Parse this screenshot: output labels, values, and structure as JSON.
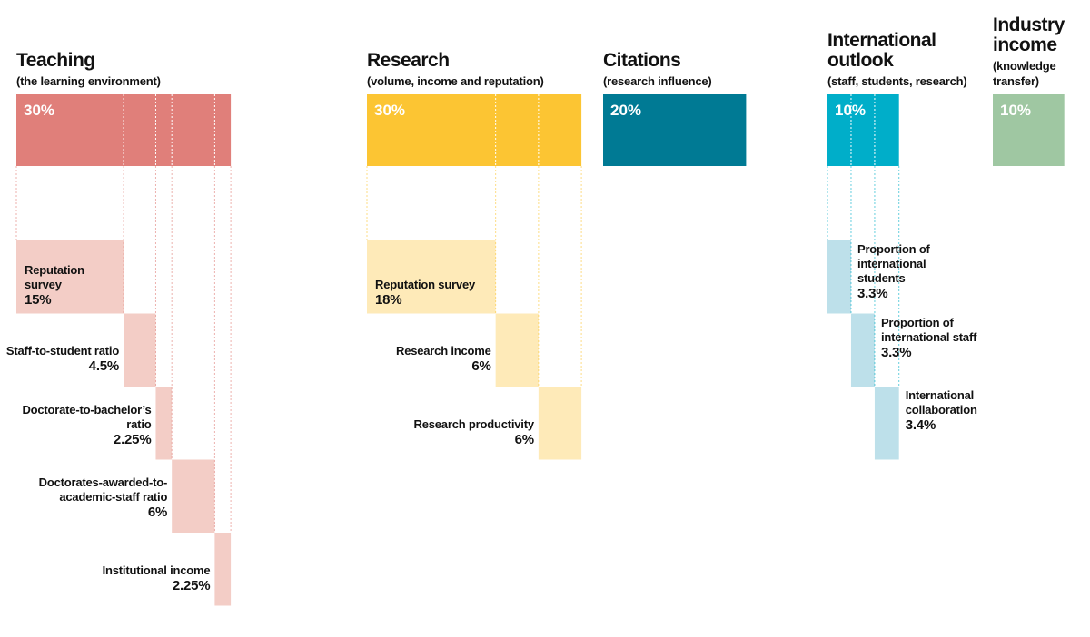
{
  "pillars": [
    {
      "title": "Teaching",
      "subtitle": "(the learning environment)",
      "weight": {
        "value": 30,
        "label": "30%"
      },
      "color": "#e07f7a",
      "light_color": "#f3cdc6",
      "label_side": "left",
      "subs": [
        {
          "name": "Reputation survey",
          "weight": {
            "value": 15,
            "label": "15%"
          }
        },
        {
          "name": "Staff-to-student ratio",
          "weight": {
            "value": 4.5,
            "label": "4.5%"
          }
        },
        {
          "name": "Doctorate-to-bachelor’s ratio",
          "weight": {
            "value": 2.25,
            "label": "2.25%"
          }
        },
        {
          "name": "Doctorates-awarded-to-academic-staff ratio",
          "weight": {
            "value": 6,
            "label": "6%"
          }
        },
        {
          "name": "Institutional income",
          "weight": {
            "value": 2.25,
            "label": "2.25%"
          }
        }
      ]
    },
    {
      "title": "Research",
      "subtitle": "(volume, income and reputation)",
      "weight": {
        "value": 30,
        "label": "30%"
      },
      "color": "#fcc533",
      "light_color": "#feeab8",
      "label_side": "left",
      "subs": [
        {
          "name": "Reputation survey",
          "weight": {
            "value": 18,
            "label": "18%"
          }
        },
        {
          "name": "Research income",
          "weight": {
            "value": 6,
            "label": "6%"
          }
        },
        {
          "name": "Research productivity",
          "weight": {
            "value": 6,
            "label": "6%"
          }
        }
      ]
    },
    {
      "title": "Citations",
      "subtitle": "(research influence)",
      "weight": {
        "value": 20,
        "label": "20%"
      },
      "color": "#007a94",
      "light_color": "#b3d7df",
      "label_side": "left",
      "subs": []
    },
    {
      "title": "International outlook",
      "subtitle": "(staff, students, research)",
      "weight": {
        "value": 10,
        "label": "10%"
      },
      "color": "#00aec9",
      "light_color": "#bde0ea",
      "label_side": "right",
      "subs": [
        {
          "name": "Proportion of international students",
          "weight": {
            "value": 3.3,
            "label": "3.3%"
          }
        },
        {
          "name": "Proportion of international staff",
          "weight": {
            "value": 3.3,
            "label": "3.3%"
          }
        },
        {
          "name": "International collaboration",
          "weight": {
            "value": 3.4,
            "label": "3.4%"
          }
        }
      ]
    },
    {
      "title": "Industry income",
      "subtitle": "(knowledge transfer)",
      "weight": {
        "value": 10,
        "label": "10%"
      },
      "color": "#9fc7a2",
      "light_color": "#d6e9d7",
      "label_side": "right",
      "subs": []
    }
  ]
}
